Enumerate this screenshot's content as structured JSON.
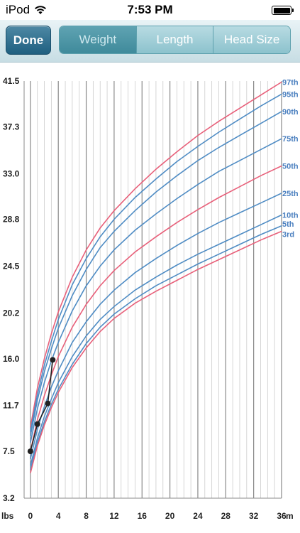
{
  "status_bar": {
    "device": "iPod",
    "time": "7:53 PM"
  },
  "toolbar": {
    "done_label": "Done",
    "tabs": [
      {
        "label": "Weight",
        "active": true
      },
      {
        "label": "Length",
        "active": false
      },
      {
        "label": "Head Size",
        "active": false
      }
    ]
  },
  "colors": {
    "toolbar_accent": "#3f8a9b",
    "red_curve": "#e8607a",
    "blue_curve": "#4f8cc4",
    "percentile_label": "#4a7fbf",
    "grid_major": "#888888",
    "grid_minor": "#cccccc"
  },
  "chart_data": {
    "type": "line",
    "y_unit_label": "lbs",
    "x_unit_label": "m",
    "x_ticks": [
      "0",
      "4",
      "8",
      "12",
      "16",
      "20",
      "24",
      "28",
      "32",
      "36"
    ],
    "y_ticks": [
      "41.5",
      "37.3",
      "33.0",
      "28.8",
      "24.5",
      "20.2",
      "16.0",
      "11.7",
      "7.5",
      "3.2"
    ],
    "xlim": [
      -0.9,
      36
    ],
    "ylim": [
      3.2,
      41.5
    ],
    "x": [
      0,
      1,
      2,
      3,
      4,
      6,
      8,
      10,
      12,
      15,
      18,
      21,
      24,
      27,
      30,
      33,
      36
    ],
    "series": [
      {
        "name": "97th",
        "color": "red",
        "values": [
          9.7,
          13.3,
          16.0,
          18.3,
          20.3,
          23.5,
          26.0,
          28.0,
          29.6,
          31.6,
          33.4,
          35.0,
          36.5,
          37.8,
          39.0,
          40.2,
          41.4
        ]
      },
      {
        "name": "95th",
        "color": "blue",
        "values": [
          9.3,
          12.7,
          15.4,
          17.6,
          19.6,
          22.8,
          25.2,
          27.2,
          28.8,
          30.8,
          32.5,
          34.1,
          35.5,
          36.8,
          38.0,
          39.2,
          40.3
        ]
      },
      {
        "name": "90th",
        "color": "blue",
        "values": [
          8.9,
          12.2,
          14.8,
          16.9,
          18.8,
          21.8,
          24.2,
          26.2,
          27.7,
          29.6,
          31.3,
          32.8,
          34.2,
          35.4,
          36.5,
          37.6,
          38.7
        ]
      },
      {
        "name": "75th",
        "color": "blue",
        "values": [
          8.3,
          11.4,
          13.8,
          15.8,
          17.5,
          20.4,
          22.7,
          24.5,
          26.0,
          27.8,
          29.3,
          30.7,
          32.0,
          33.2,
          34.2,
          35.2,
          36.2
        ]
      },
      {
        "name": "50th",
        "color": "red",
        "values": [
          7.5,
          10.4,
          12.6,
          14.5,
          16.2,
          18.9,
          21.0,
          22.7,
          24.1,
          25.8,
          27.2,
          28.5,
          29.7,
          30.8,
          31.8,
          32.8,
          33.7
        ]
      },
      {
        "name": "25th",
        "color": "blue",
        "values": [
          6.8,
          9.5,
          11.6,
          13.4,
          14.9,
          17.5,
          19.4,
          21.0,
          22.3,
          23.9,
          25.2,
          26.4,
          27.5,
          28.5,
          29.4,
          30.3,
          31.2
        ]
      },
      {
        "name": "10th",
        "color": "blue",
        "values": [
          6.2,
          8.7,
          10.7,
          12.3,
          13.8,
          16.2,
          18.1,
          19.6,
          20.8,
          22.3,
          23.5,
          24.6,
          25.6,
          26.5,
          27.4,
          28.3,
          29.2
        ]
      },
      {
        "name": "5th",
        "color": "blue",
        "values": [
          5.8,
          8.3,
          10.2,
          11.8,
          13.2,
          15.5,
          17.4,
          18.9,
          20.1,
          21.5,
          22.7,
          23.7,
          24.7,
          25.6,
          26.5,
          27.4,
          28.2
        ]
      },
      {
        "name": "3rd",
        "color": "red",
        "values": [
          5.5,
          8.0,
          9.9,
          11.5,
          12.9,
          15.2,
          17.0,
          18.5,
          19.7,
          21.1,
          22.2,
          23.2,
          24.2,
          25.1,
          26.0,
          26.9,
          27.7
        ]
      }
    ],
    "measurements": {
      "x": [
        0,
        1,
        2.5,
        3.2
      ],
      "y": [
        7.5,
        10.0,
        11.9,
        15.9
      ]
    },
    "grid": true,
    "legend": "right-end labels"
  }
}
